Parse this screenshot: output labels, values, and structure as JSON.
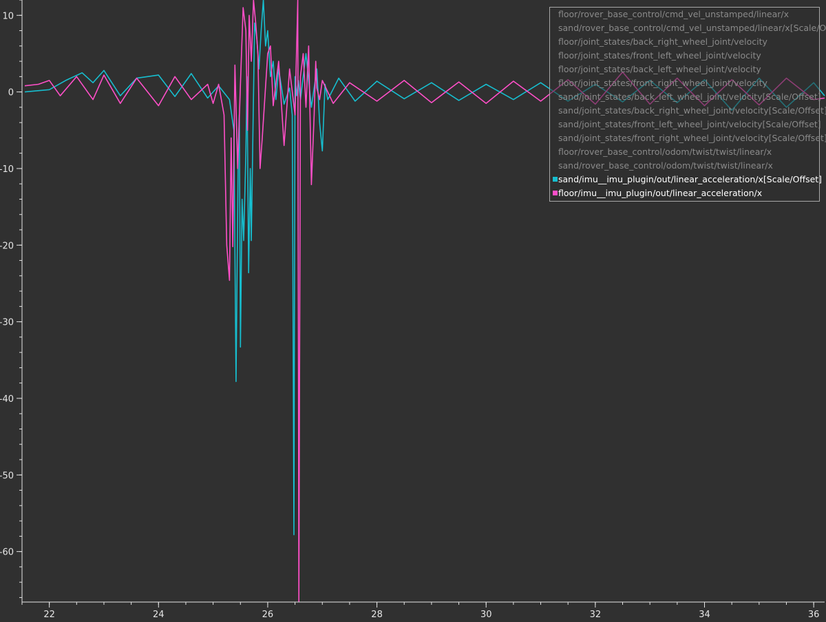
{
  "chart_data": {
    "type": "line",
    "xlim": [
      21.5,
      36.2
    ],
    "ylim": [
      -66.5,
      12
    ],
    "x_ticks": [
      22,
      24,
      26,
      28,
      30,
      32,
      34,
      36
    ],
    "x_tick_labels": [
      "22",
      "24",
      "26",
      "28",
      "30",
      "32",
      "34",
      "36"
    ],
    "y_ticks": [
      10,
      0,
      -10,
      -20,
      -30,
      -40,
      -50,
      -60
    ],
    "y_tick_labels": [
      "10",
      "0",
      "-10",
      "-20",
      "-30",
      "-40",
      "-50",
      "-60"
    ],
    "grid": false,
    "legend_position": "top-right",
    "legend": [
      {
        "label": "floor/rover_base_control/cmd_vel_unstamped/linear/x",
        "active": false
      },
      {
        "label": "sand/rover_base_control/cmd_vel_unstamped/linear/x[Scale/Offset]",
        "active": false
      },
      {
        "label": "floor/joint_states/back_right_wheel_joint/velocity",
        "active": false
      },
      {
        "label": "floor/joint_states/front_left_wheel_joint/velocity",
        "active": false
      },
      {
        "label": "floor/joint_states/back_left_wheel_joint/velocity",
        "active": false
      },
      {
        "label": "floor/joint_states/front_right_wheel_joint/velocity",
        "active": false
      },
      {
        "label": "sand/joint_states/back_left_wheel_joint/velocity[Scale/Offset]",
        "active": false
      },
      {
        "label": "sand/joint_states/back_right_wheel_joint/velocity[Scale/Offset]",
        "active": false
      },
      {
        "label": "sand/joint_states/front_left_wheel_joint/velocity[Scale/Offset]",
        "active": false
      },
      {
        "label": "sand/joint_states/front_right_wheel_joint/velocity[Scale/Offset]",
        "active": false
      },
      {
        "label": "floor/rover_base_control/odom/twist/twist/linear/x",
        "active": false
      },
      {
        "label": "sand/rover_base_control/odom/twist/twist/linear/x",
        "active": false
      },
      {
        "label": "sand/imu__imu_plugin/out/linear_acceleration/x[Scale/Offset]",
        "active": true,
        "color": "#17becf"
      },
      {
        "label": "floor/imu__imu_plugin/out/linear_acceleration/x",
        "active": true,
        "color": "#ff4fc8"
      }
    ],
    "series": [
      {
        "name": "sand/imu__imu_plugin/out/linear_acceleration/x[Scale/Offset]",
        "color": "#17becf",
        "x": [
          21.55,
          22.0,
          22.3,
          22.6,
          22.8,
          23.0,
          23.3,
          23.6,
          24.0,
          24.3,
          24.6,
          24.9,
          25.1,
          25.3,
          25.38,
          25.42,
          25.46,
          25.48,
          25.5,
          25.53,
          25.56,
          25.6,
          25.62,
          25.65,
          25.68,
          25.7,
          25.73,
          25.76,
          25.8,
          25.84,
          25.88,
          25.92,
          25.96,
          26.0,
          26.05,
          26.1,
          26.15,
          26.2,
          26.3,
          26.4,
          26.45,
          26.48,
          26.5,
          26.53,
          26.56,
          26.6,
          26.7,
          26.8,
          26.9,
          26.95,
          27.0,
          27.05,
          27.1,
          27.3,
          27.6,
          28.0,
          28.5,
          29.0,
          29.5,
          30.0,
          30.5,
          31.0,
          31.5,
          32.0,
          32.5,
          33.0,
          33.5,
          34.0,
          34.5,
          35.0,
          35.5,
          36.0,
          36.2
        ],
        "y": [
          0,
          0.3,
          1.5,
          2.5,
          1.2,
          2.8,
          -0.5,
          1.8,
          2.2,
          -0.6,
          2.4,
          -0.8,
          0.8,
          -1.0,
          -5.0,
          -37.8,
          -8.0,
          -3.0,
          -33.3,
          -14.0,
          -19.4,
          -8.0,
          2.0,
          -23.6,
          -10.0,
          -19.4,
          -5.0,
          9.0,
          7.0,
          3.0,
          8.0,
          12.0,
          6.0,
          8.0,
          2.0,
          4.0,
          -1.0,
          3.0,
          -1.6,
          0.5,
          -3.0,
          -57.8,
          2.0,
          -0.5,
          1.5,
          -1.0,
          5.0,
          -2.0,
          3.0,
          -4.0,
          -7.7,
          1.0,
          -1.0,
          1.8,
          -1.2,
          1.4,
          -0.9,
          1.2,
          -1.1,
          1.0,
          -1.0,
          1.2,
          -1.2,
          1.0,
          -1.3,
          1.5,
          -1.4,
          1.6,
          -2.4,
          1.8,
          -2.0,
          1.2,
          -0.5
        ]
      },
      {
        "name": "floor/imu__imu_plugin/out/linear_acceleration/x",
        "color": "#ff4fc8",
        "x": [
          21.55,
          21.8,
          22.0,
          22.2,
          22.5,
          22.8,
          23.0,
          23.3,
          23.6,
          24.0,
          24.3,
          24.6,
          24.9,
          25.0,
          25.1,
          25.2,
          25.25,
          25.3,
          25.33,
          25.36,
          25.4,
          25.45,
          25.5,
          25.55,
          25.6,
          25.63,
          25.66,
          25.7,
          25.74,
          25.78,
          25.82,
          25.86,
          25.9,
          26.0,
          26.05,
          26.1,
          26.2,
          26.3,
          26.4,
          26.5,
          26.55,
          26.57,
          26.6,
          26.65,
          26.7,
          26.75,
          26.8,
          26.85,
          26.88,
          26.9,
          26.95,
          27.0,
          27.2,
          27.5,
          28.0,
          28.5,
          29.0,
          29.5,
          30.0,
          30.5,
          31.0,
          31.5,
          32.0,
          32.5,
          33.0,
          33.5,
          34.0,
          34.5,
          35.0,
          35.5,
          36.0,
          36.2
        ],
        "y": [
          0.8,
          1.0,
          1.5,
          -0.5,
          2.0,
          -1.0,
          2.2,
          -1.5,
          1.8,
          -1.8,
          2.0,
          -1.0,
          1.0,
          -1.5,
          1.0,
          -3.0,
          -20.0,
          -24.6,
          -6.0,
          -20.2,
          3.5,
          -10.0,
          1.0,
          11.0,
          8.0,
          -5.0,
          10.0,
          4.0,
          12.0,
          9.0,
          5.0,
          -10.0,
          -6.0,
          5.0,
          6.0,
          -1.8,
          4.0,
          -7.0,
          3.0,
          -3.0,
          12.0,
          -66.5,
          2.0,
          5.0,
          -2.0,
          6.0,
          -12.1,
          -3.0,
          4.0,
          0.5,
          -1.0,
          1.5,
          -1.5,
          1.2,
          -1.2,
          1.5,
          -1.4,
          1.3,
          -1.5,
          1.4,
          -1.2,
          1.6,
          -1.6,
          2.6,
          -1.6,
          1.8,
          -1.8,
          1.6,
          -1.7,
          1.8,
          -1.0,
          -0.8
        ]
      }
    ]
  }
}
